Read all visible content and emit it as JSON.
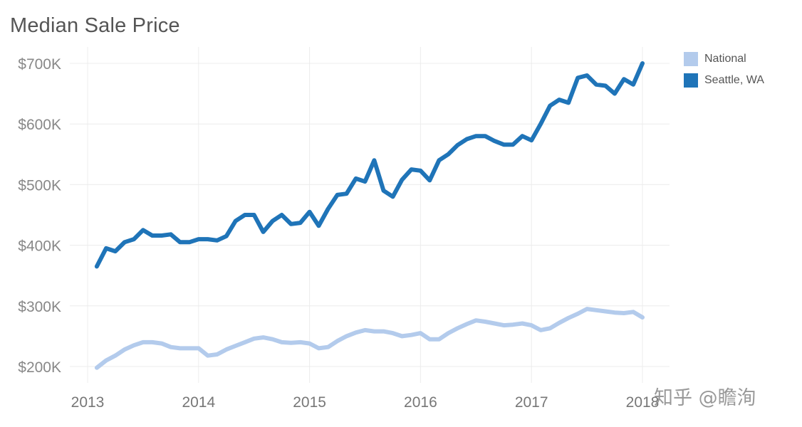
{
  "watermark": "知乎 @瞻洵",
  "colors": {
    "national": "#b3cbec",
    "seattle": "#1f74b8",
    "grid": "#ececec"
  },
  "chart_data": {
    "type": "line",
    "title": "Median Sale Price",
    "xlabel": "",
    "ylabel": "",
    "x_ticks": [
      "2013",
      "2014",
      "2015",
      "2016",
      "2017",
      "2018"
    ],
    "y_ticks": [
      "$200K",
      "$300K",
      "$400K",
      "$500K",
      "$600K",
      "$700K"
    ],
    "xlim": [
      2013,
      2018
    ],
    "ylim": [
      200000,
      700000
    ],
    "grid": true,
    "legend_position": "top-right",
    "x": [
      2013.083,
      2013.167,
      2013.25,
      2013.333,
      2013.417,
      2013.5,
      2013.583,
      2013.667,
      2013.75,
      2013.833,
      2013.917,
      2014.0,
      2014.083,
      2014.167,
      2014.25,
      2014.333,
      2014.417,
      2014.5,
      2014.583,
      2014.667,
      2014.75,
      2014.833,
      2014.917,
      2015.0,
      2015.083,
      2015.167,
      2015.25,
      2015.333,
      2015.417,
      2015.5,
      2015.583,
      2015.667,
      2015.75,
      2015.833,
      2015.917,
      2016.0,
      2016.083,
      2016.167,
      2016.25,
      2016.333,
      2016.417,
      2016.5,
      2016.583,
      2016.667,
      2016.75,
      2016.833,
      2016.917,
      2017.0,
      2017.083,
      2017.167,
      2017.25,
      2017.333,
      2017.417,
      2017.5,
      2017.583,
      2017.667,
      2017.75,
      2017.833,
      2017.917,
      2018.0
    ],
    "series": [
      {
        "name": "National",
        "values": [
          198000,
          210000,
          218000,
          228000,
          235000,
          240000,
          240000,
          238000,
          232000,
          230000,
          230000,
          230000,
          218000,
          220000,
          228000,
          234000,
          240000,
          246000,
          248000,
          245000,
          240000,
          239000,
          240000,
          238000,
          230000,
          232000,
          242000,
          250000,
          256000,
          260000,
          258000,
          258000,
          255000,
          250000,
          252000,
          255000,
          245000,
          245000,
          255000,
          263000,
          270000,
          276000,
          274000,
          271000,
          268000,
          269000,
          271000,
          268000,
          260000,
          263000,
          272000,
          280000,
          287000,
          295000,
          293000,
          291000,
          289000,
          288000,
          290000,
          281000
        ]
      },
      {
        "name": "Seattle, WA",
        "values": [
          365000,
          395000,
          390000,
          405000,
          410000,
          425000,
          416000,
          416000,
          418000,
          405000,
          405000,
          410000,
          410000,
          408000,
          415000,
          440000,
          450000,
          450000,
          422000,
          440000,
          450000,
          435000,
          437000,
          455000,
          432000,
          460000,
          483000,
          485000,
          510000,
          505000,
          540000,
          490000,
          480000,
          508000,
          525000,
          523000,
          507000,
          540000,
          550000,
          565000,
          575000,
          580000,
          580000,
          572000,
          566000,
          566000,
          580000,
          573000,
          600000,
          630000,
          640000,
          635000,
          676000,
          680000,
          665000,
          663000,
          650000,
          674000,
          665000,
          700000
        ]
      }
    ]
  }
}
